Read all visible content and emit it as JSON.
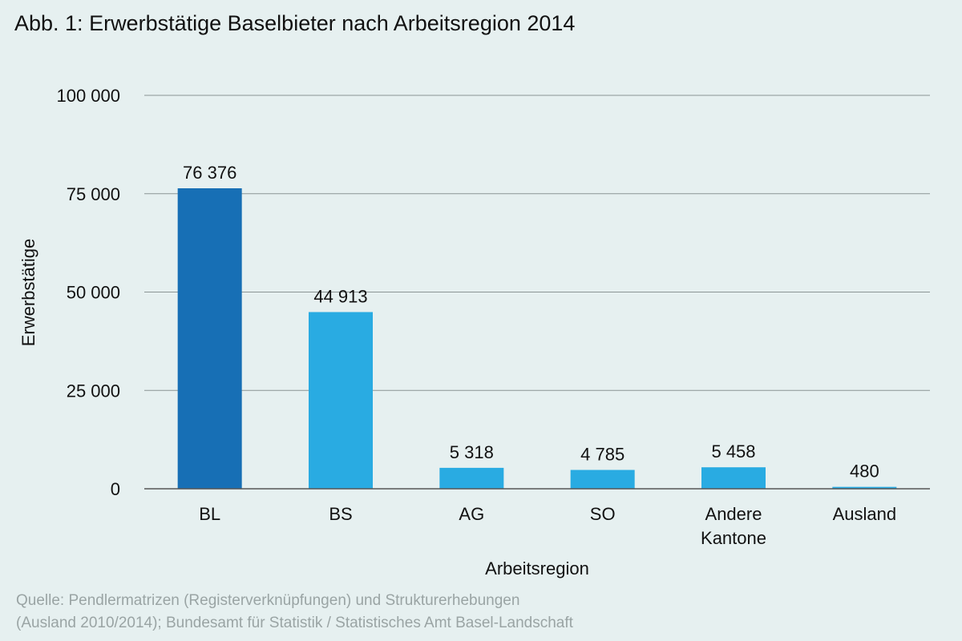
{
  "chart_data": {
    "type": "bar",
    "title": "Abb. 1: Erwerbstätige Baselbieter nach Arbeitsregion 2014",
    "xlabel": "Arbeitsregion",
    "ylabel": "Erwerbstätige",
    "ylim": [
      0,
      100000
    ],
    "yticks": [
      0,
      25000,
      50000,
      75000,
      100000
    ],
    "ytick_labels": [
      "0",
      "25 000",
      "50 000",
      "75 000",
      "100 000"
    ],
    "grid": true,
    "categories": [
      [
        "BL"
      ],
      [
        "BS"
      ],
      [
        "AG"
      ],
      [
        "SO"
      ],
      [
        "Andere",
        "Kantone"
      ],
      [
        "Ausland"
      ]
    ],
    "values": [
      76376,
      44913,
      5318,
      4785,
      5458,
      480
    ],
    "value_labels": [
      "76 376",
      "44 913",
      "5 318",
      "4 785",
      "5 458",
      "480"
    ],
    "bar_colors": [
      "#176fb5",
      "#29abe2",
      "#29abe2",
      "#29abe2",
      "#29abe2",
      "#29abe2"
    ]
  },
  "source": {
    "line1": "Quelle: Pendlermatrizen (Registerverknüpfungen) und Strukturerhebungen",
    "line2": "(Ausland 2010/2014); Bundesamt für Statistik / Statistisches Amt Basel-Landschaft"
  },
  "colors": {
    "background": "#e6f0f0",
    "gridline": "#8a9494",
    "axis": "#555555",
    "text": "#111111",
    "source_text": "#9aa4a4"
  }
}
